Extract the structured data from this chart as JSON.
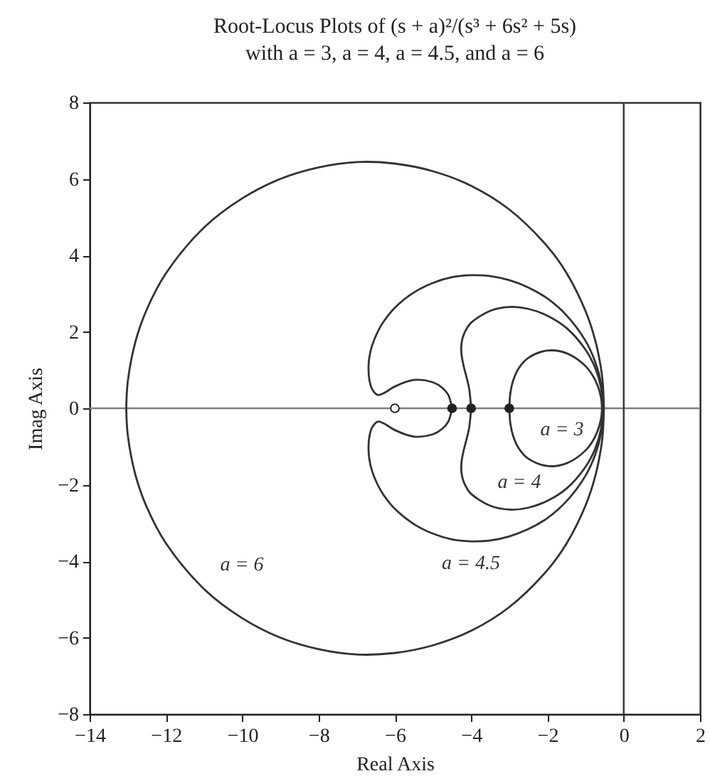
{
  "chart_data": {
    "type": "line",
    "title": "Root-Locus Plots of (s + a)²/(s³ + 6s² + 5s)",
    "subtitle": "with a = 3, a = 4, a = 4.5, and a = 6",
    "xlabel": "Real Axis",
    "ylabel": "Imag Axis",
    "xlim": [
      -14,
      2
    ],
    "ylim": [
      -8,
      8
    ],
    "xticks": [
      -14,
      -12,
      -10,
      -8,
      -6,
      -4,
      -2,
      0,
      2
    ],
    "yticks": [
      -8,
      -6,
      -4,
      -2,
      0,
      2,
      4,
      6,
      8
    ],
    "ref_lines": [
      {
        "axis": "y",
        "value": 0,
        "color": "#808080"
      },
      {
        "axis": "x",
        "value": 0,
        "color": "#333333"
      }
    ],
    "series": [
      {
        "name": "a = 6",
        "color": "#333333",
        "x": [
          -0.52,
          -0.55,
          -0.6,
          -0.75,
          -1,
          -1.5,
          -2,
          -3,
          -4,
          -5,
          -6,
          -7,
          -8,
          -9,
          -10,
          -11,
          -12,
          -12.5,
          -12.8,
          -13,
          -13.04,
          null,
          -0.52,
          -0.55,
          -0.6,
          -0.75,
          -1,
          -1.5,
          -2,
          -3,
          -4,
          -5,
          -6,
          -7,
          -8,
          -9,
          -10,
          -11,
          -12,
          -12.5,
          -12.8,
          -13,
          -13.04
        ],
        "values": [
          0,
          0.67,
          1.07,
          1.79,
          2.54,
          3.54,
          4.23,
          5.2,
          5.82,
          6.2,
          6.4,
          6.44,
          6.3,
          6,
          5.49,
          4.73,
          3.53,
          2.59,
          1.74,
          0.7,
          0,
          null,
          0,
          -0.67,
          -1.07,
          -1.79,
          -2.54,
          -3.54,
          -4.23,
          -5.2,
          -5.82,
          -6.2,
          -6.4,
          -6.44,
          -6.3,
          -6,
          -5.49,
          -4.73,
          -3.53,
          -2.59,
          -1.74,
          -0.7,
          0
        ]
      },
      {
        "name": "a = 4.5",
        "color": "#333333",
        "x": [
          -0.54,
          -0.6,
          -0.75,
          -1,
          -1.5,
          -2,
          -2.5,
          -3,
          -3.5,
          -4,
          -4.5,
          -5,
          -5.5,
          -6,
          -6.3,
          -6.45,
          -6.6,
          -6.67,
          -6.69,
          -6.67,
          -6.6,
          -6.45,
          -6.3,
          -6,
          -5.5,
          -5,
          -4.75,
          -4.6,
          -4.5,
          null,
          -0.54,
          -0.6,
          -0.75,
          -1,
          -1.5,
          -2,
          -2.5,
          -3,
          -3.5,
          -4,
          -4.5,
          -5,
          -5.5,
          -6,
          -6.3,
          -6.45,
          -6.6,
          -6.67,
          -6.69,
          -6.67,
          -6.6,
          -6.45,
          -6.3,
          -6,
          -5.5,
          -5,
          -4.75,
          -4.6,
          -4.5
        ],
        "values": [
          0,
          0.68,
          1.22,
          1.76,
          2.43,
          2.87,
          3.16,
          3.35,
          3.46,
          3.48,
          3.43,
          3.28,
          3.03,
          2.63,
          2.26,
          2.0,
          1.63,
          1.32,
          1.03,
          0.76,
          0.51,
          0.35,
          0.39,
          0.57,
          0.74,
          0.68,
          0.53,
          0.35,
          0,
          null,
          0,
          -0.68,
          -1.22,
          -1.76,
          -2.43,
          -2.87,
          -3.16,
          -3.35,
          -3.46,
          -3.48,
          -3.43,
          -3.28,
          -3.03,
          -2.63,
          -2.26,
          -2.0,
          -1.63,
          -1.32,
          -1.03,
          -0.76,
          -0.51,
          -0.35,
          -0.39,
          -0.57,
          -0.74,
          -0.68,
          -0.53,
          -0.35,
          0
        ]
      },
      {
        "name": "a = 4",
        "color": "#333333",
        "x": [
          -0.55,
          -0.6,
          -0.75,
          -1,
          -1.5,
          -2,
          -2.5,
          -3,
          -3.5,
          -4,
          -4.1,
          -4.2,
          -4.25,
          -4.26,
          -4.25,
          -4.2,
          -4.1,
          -4.05,
          -4,
          null,
          -0.55,
          -0.6,
          -0.75,
          -1,
          -1.5,
          -2,
          -2.5,
          -3,
          -3.5,
          -4,
          -4.1,
          -4.2,
          -4.25,
          -4.26,
          -4.25,
          -4.2,
          -4.1,
          -4.05,
          -4
        ],
        "values": [
          0,
          0.56,
          1.06,
          1.53,
          2.1,
          2.42,
          2.6,
          2.65,
          2.55,
          2.24,
          2.11,
          1.91,
          1.71,
          1.55,
          1.39,
          1.12,
          0.73,
          0.5,
          0,
          null,
          0,
          -0.56,
          -1.06,
          -1.53,
          -2.1,
          -2.42,
          -2.6,
          -2.65,
          -2.55,
          -2.24,
          -2.11,
          -1.91,
          -1.71,
          -1.55,
          -1.39,
          -1.12,
          -0.73,
          -0.5,
          0
        ]
      },
      {
        "name": "a = 3",
        "color": "#333333",
        "x": [
          -0.57,
          -0.6,
          -0.75,
          -1,
          -1.5,
          -2,
          -2.5,
          -2.75,
          -2.9,
          -2.97,
          -3,
          null,
          -0.57,
          -0.6,
          -0.75,
          -1,
          -1.5,
          -2,
          -2.5,
          -2.75,
          -2.9,
          -2.97,
          -3
        ],
        "values": [
          0,
          0.3,
          0.74,
          1.1,
          1.44,
          1.51,
          1.32,
          1.05,
          0.72,
          0.41,
          0,
          null,
          0,
          -0.3,
          -0.74,
          -1.1,
          -1.44,
          -1.51,
          -1.32,
          -1.05,
          -0.72,
          -0.41,
          0
        ]
      },
      {
        "type": "scatter",
        "marker": "circle",
        "color": "#222222",
        "x": [
          -4.5,
          -4,
          -3
        ],
        "values": [
          0,
          0,
          0
        ]
      },
      {
        "type": "scatter",
        "marker": "circle",
        "color": "#ffffff",
        "x": [
          -6
        ],
        "values": [
          0
        ]
      }
    ]
  }
}
